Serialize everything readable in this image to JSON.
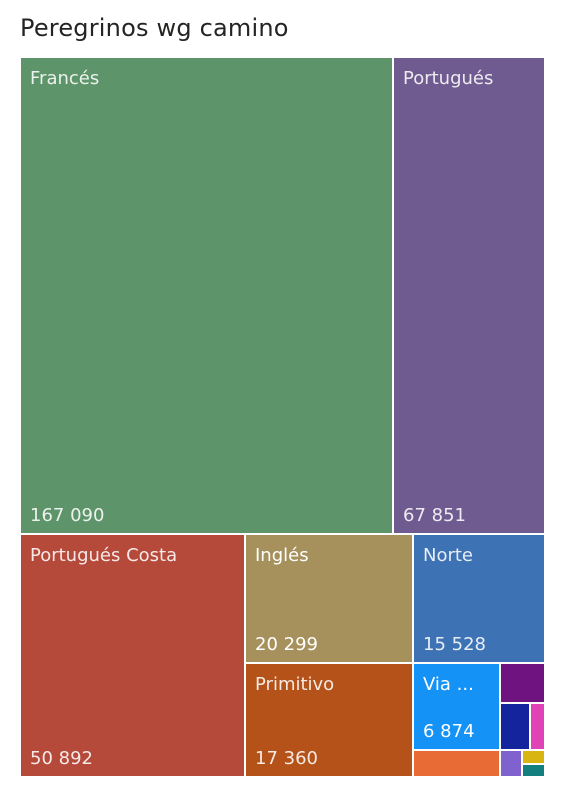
{
  "title": "Peregrinos wg camino",
  "chart_data": {
    "type": "treemap",
    "title": "Peregrinos wg camino",
    "items": [
      {
        "label": "Francés",
        "value": 167090,
        "value_label": "167 090",
        "color": "#5e946a"
      },
      {
        "label": "Portugués",
        "value": 67851,
        "value_label": "67 851",
        "color": "#6f5b8f"
      },
      {
        "label": "Portugués Costa",
        "value": 50892,
        "value_label": "50 892",
        "color": "#b5493a"
      },
      {
        "label": "Inglés",
        "value": 20299,
        "value_label": "20 299",
        "color": "#a6915d"
      },
      {
        "label": "Primitivo",
        "value": 17360,
        "value_label": "17 360",
        "color": "#b45219"
      },
      {
        "label": "Norte",
        "value": 15528,
        "value_label": "15 528",
        "color": "#3d72b5"
      },
      {
        "label": "Via ...",
        "value": 6874,
        "value_label": "6 874",
        "color": "#1592f5"
      },
      {
        "label": "",
        "value": null,
        "value_label": "",
        "color": "#6e1380"
      },
      {
        "label": "",
        "value": null,
        "value_label": "",
        "color": "#13249c"
      },
      {
        "label": "",
        "value": null,
        "value_label": "",
        "color": "#df43b5"
      },
      {
        "label": "",
        "value": null,
        "value_label": "",
        "color": "#e86a35"
      },
      {
        "label": "",
        "value": null,
        "value_label": "",
        "color": "#7f62ce"
      },
      {
        "label": "",
        "value": null,
        "value_label": "",
        "color": "#d8b511"
      },
      {
        "label": "",
        "value": null,
        "value_label": "",
        "color": "#137f7f"
      }
    ]
  }
}
